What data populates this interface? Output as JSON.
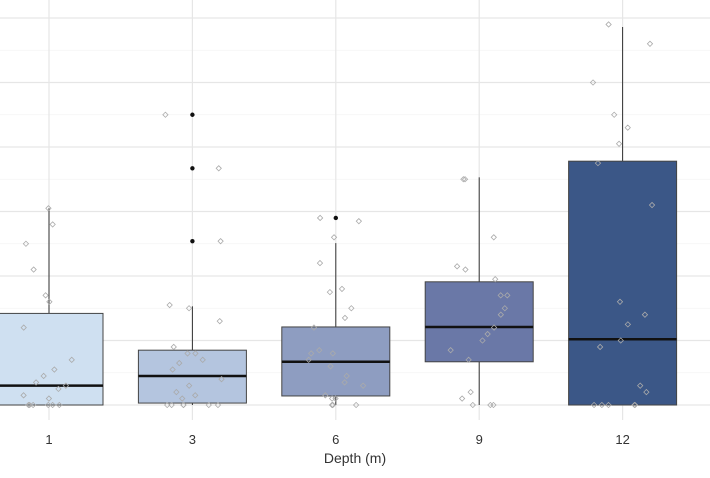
{
  "chart_data": {
    "type": "box",
    "title": "",
    "xlabel": "Depth (m)",
    "ylabel": "",
    "categories": [
      "1",
      "3",
      "6",
      "9",
      "12"
    ],
    "ylim": [
      -0.1,
      6.1
    ],
    "grid": true,
    "colors": [
      "#cfe0f1",
      "#b4c5df",
      "#8e9dc1",
      "#6a78a7",
      "#3b5787"
    ],
    "boxes": [
      {
        "category": "1",
        "whisker_low": 0,
        "q1": 0,
        "median": 0.3,
        "q3": 1.42,
        "whisker_high": 3.05,
        "outliers": []
      },
      {
        "category": "3",
        "whisker_low": 0,
        "q1": 0.03,
        "median": 0.45,
        "q3": 0.85,
        "whisker_high": 1.53,
        "outliers": [
          4.5,
          3.67,
          2.54
        ]
      },
      {
        "category": "6",
        "whisker_low": 0,
        "q1": 0.14,
        "median": 0.67,
        "q3": 1.21,
        "whisker_high": 2.51,
        "outliers": [
          2.9
        ]
      },
      {
        "category": "9",
        "whisker_low": 0,
        "q1": 0.67,
        "median": 1.21,
        "q3": 1.91,
        "whisker_high": 3.53,
        "outliers": []
      },
      {
        "category": "12",
        "whisker_low": 0,
        "q1": 0,
        "median": 1.02,
        "q3": 3.78,
        "whisker_high": 5.86,
        "outliers": []
      }
    ],
    "points": [
      [
        3.05,
        2.8,
        2.5,
        2.1,
        1.7,
        1.6,
        1.2,
        0.7,
        0.55,
        0.45,
        0.35,
        0.3,
        0.25,
        0.15,
        0.1,
        0,
        0,
        0,
        0,
        0,
        0
      ],
      [
        4.5,
        3.67,
        2.54,
        1.55,
        1.5,
        1.3,
        0.9,
        0.8,
        0.8,
        0.7,
        0.65,
        0.55,
        0.4,
        0.3,
        0.2,
        0.15,
        0.1,
        0,
        0,
        0,
        0,
        0,
        0
      ],
      [
        2.9,
        2.85,
        2.6,
        2.2,
        1.8,
        1.75,
        1.5,
        1.35,
        1.2,
        0.85,
        0.8,
        0.8,
        0.7,
        0.6,
        0.45,
        0.35,
        0.3,
        0.15,
        0.1,
        0.1,
        0,
        0,
        0,
        0
      ],
      [
        3.5,
        3.5,
        2.6,
        2.15,
        2.1,
        1.95,
        1.7,
        1.7,
        1.5,
        1.4,
        1.2,
        1.1,
        1.0,
        0.85,
        0.7,
        0.2,
        0.1,
        0,
        0,
        0
      ],
      [
        5.9,
        5.6,
        5.0,
        4.5,
        4.3,
        4.05,
        3.75,
        3.1,
        1.6,
        1.4,
        1.25,
        1.0,
        0.9,
        0.3,
        0.2,
        0,
        0,
        0,
        0,
        0
      ]
    ]
  }
}
